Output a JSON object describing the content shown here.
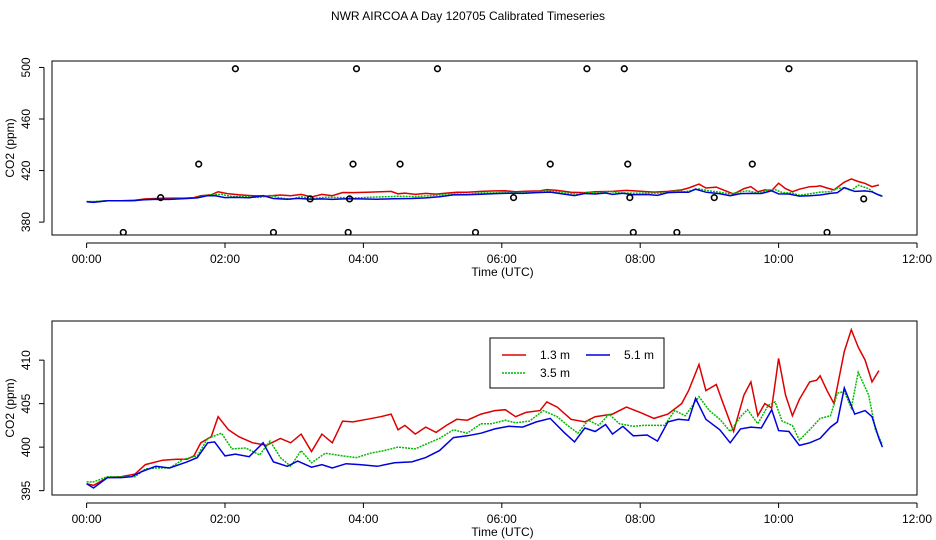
{
  "title": "NWR AIRCOA A  Day 120705  Calibrated Timeseries",
  "colors": {
    "1.3 m": "#dd0000",
    "3.5 m": "#00bb00",
    "5.1 m": "#0000dd",
    "flags": "#000000"
  },
  "chart_data": [
    {
      "type": "line",
      "title": "",
      "xlabel": "Time (UTC)",
      "ylabel": "CO2 (ppm)",
      "xlim": [
        -0.5,
        12.0
      ],
      "ylim": [
        370,
        505
      ],
      "x_ticks": [
        0,
        2,
        4,
        6,
        8,
        10,
        12
      ],
      "x_tick_labels": [
        "00:00",
        "02:00",
        "04:00",
        "06:00",
        "08:00",
        "10:00",
        "12:00"
      ],
      "y_ticks": [
        380,
        420,
        460,
        500
      ],
      "y_tick_labels": [
        "380",
        "420",
        "460",
        "500"
      ],
      "markers": {
        "name": "calibration flags",
        "points": [
          [
            0.53,
            372
          ],
          [
            1.07,
            399
          ],
          [
            1.62,
            425
          ],
          [
            2.15,
            499
          ],
          [
            2.7,
            372
          ],
          [
            3.23,
            398
          ],
          [
            3.78,
            372
          ],
          [
            3.8,
            398
          ],
          [
            3.85,
            425
          ],
          [
            3.9,
            499
          ],
          [
            4.53,
            425
          ],
          [
            5.07,
            499
          ],
          [
            5.62,
            372
          ],
          [
            6.17,
            399
          ],
          [
            6.7,
            425
          ],
          [
            7.23,
            499
          ],
          [
            7.77,
            499
          ],
          [
            7.82,
            425
          ],
          [
            7.85,
            399
          ],
          [
            7.9,
            372
          ],
          [
            8.53,
            372
          ],
          [
            9.07,
            399
          ],
          [
            9.62,
            425
          ],
          [
            10.15,
            499
          ],
          [
            10.7,
            372
          ],
          [
            11.23,
            398
          ]
        ]
      },
      "series_ref": "shared"
    },
    {
      "type": "line",
      "title": "",
      "xlabel": "Time (UTC)",
      "ylabel": "CO2 (ppm)",
      "xlim": [
        -0.5,
        12.0
      ],
      "ylim": [
        394.5,
        414.5
      ],
      "x_ticks": [
        0,
        2,
        4,
        6,
        8,
        10,
        12
      ],
      "x_tick_labels": [
        "00:00",
        "02:00",
        "04:00",
        "06:00",
        "08:00",
        "10:00",
        "12:00"
      ],
      "y_ticks": [
        395,
        400,
        405,
        410
      ],
      "y_tick_labels": [
        "395",
        "400",
        "405",
        "410"
      ],
      "legend": {
        "position": "top-center",
        "entries": [
          "1.3 m",
          "3.5 m",
          "5.1 m"
        ]
      },
      "series_ref": "shared"
    }
  ],
  "series": [
    {
      "name": "1.3 m",
      "points": [
        [
          0.0,
          395.8
        ],
        [
          0.1,
          395.6
        ],
        [
          0.3,
          396.5
        ],
        [
          0.5,
          396.6
        ],
        [
          0.7,
          396.9
        ],
        [
          0.85,
          398.0
        ],
        [
          1.1,
          398.5
        ],
        [
          1.3,
          398.6
        ],
        [
          1.45,
          398.6
        ],
        [
          1.55,
          399.0
        ],
        [
          1.65,
          400.5
        ],
        [
          1.8,
          401.2
        ],
        [
          1.9,
          403.5
        ],
        [
          2.05,
          402.0
        ],
        [
          2.2,
          401.2
        ],
        [
          2.4,
          400.5
        ],
        [
          2.6,
          400.2
        ],
        [
          2.8,
          401.0
        ],
        [
          2.95,
          400.5
        ],
        [
          3.1,
          401.5
        ],
        [
          3.25,
          399.5
        ],
        [
          3.4,
          401.5
        ],
        [
          3.55,
          400.5
        ],
        [
          3.7,
          403.0
        ],
        [
          3.85,
          402.9
        ],
        [
          4.05,
          403.2
        ],
        [
          4.25,
          403.5
        ],
        [
          4.4,
          403.8
        ],
        [
          4.5,
          402.0
        ],
        [
          4.6,
          402.5
        ],
        [
          4.75,
          401.5
        ],
        [
          4.9,
          402.3
        ],
        [
          5.05,
          401.7
        ],
        [
          5.2,
          402.5
        ],
        [
          5.35,
          403.2
        ],
        [
          5.5,
          403.1
        ],
        [
          5.7,
          403.8
        ],
        [
          5.9,
          404.2
        ],
        [
          6.05,
          404.3
        ],
        [
          6.2,
          403.5
        ],
        [
          6.35,
          404.0
        ],
        [
          6.55,
          404.2
        ],
        [
          6.65,
          405.2
        ],
        [
          6.8,
          404.6
        ],
        [
          7.0,
          403.2
        ],
        [
          7.2,
          402.9
        ],
        [
          7.35,
          403.5
        ],
        [
          7.6,
          403.8
        ],
        [
          7.8,
          404.6
        ],
        [
          8.0,
          404.0
        ],
        [
          8.2,
          403.3
        ],
        [
          8.4,
          403.8
        ],
        [
          8.6,
          405.0
        ],
        [
          8.7,
          406.5
        ],
        [
          8.85,
          409.5
        ],
        [
          8.95,
          406.5
        ],
        [
          9.1,
          407.2
        ],
        [
          9.2,
          405.0
        ],
        [
          9.35,
          401.8
        ],
        [
          9.5,
          406.0
        ],
        [
          9.6,
          407.5
        ],
        [
          9.7,
          403.6
        ],
        [
          9.8,
          405.0
        ],
        [
          9.9,
          404.5
        ],
        [
          10.0,
          410.2
        ],
        [
          10.1,
          406.0
        ],
        [
          10.2,
          403.6
        ],
        [
          10.3,
          405.5
        ],
        [
          10.45,
          407.5
        ],
        [
          10.55,
          407.7
        ],
        [
          10.6,
          408.2
        ],
        [
          10.7,
          406.5
        ],
        [
          10.8,
          405.0
        ],
        [
          10.95,
          411.0
        ],
        [
          11.05,
          413.5
        ],
        [
          11.15,
          411.5
        ],
        [
          11.25,
          410.0
        ],
        [
          11.35,
          407.5
        ],
        [
          11.45,
          408.8
        ]
      ]
    },
    {
      "name": "3.5 m",
      "points": [
        [
          0.0,
          396.0
        ],
        [
          0.1,
          396.0
        ],
        [
          0.3,
          396.6
        ],
        [
          0.5,
          396.6
        ],
        [
          0.7,
          396.6
        ],
        [
          0.85,
          397.5
        ],
        [
          1.0,
          397.6
        ],
        [
          1.2,
          397.6
        ],
        [
          1.4,
          398.6
        ],
        [
          1.6,
          399.0
        ],
        [
          1.75,
          401.0
        ],
        [
          1.95,
          401.6
        ],
        [
          2.1,
          399.8
        ],
        [
          2.3,
          399.9
        ],
        [
          2.5,
          399.1
        ],
        [
          2.65,
          400.7
        ],
        [
          2.8,
          398.8
        ],
        [
          2.95,
          397.8
        ],
        [
          3.1,
          399.6
        ],
        [
          3.25,
          398.2
        ],
        [
          3.45,
          399.3
        ],
        [
          3.7,
          399.0
        ],
        [
          3.9,
          398.8
        ],
        [
          4.1,
          399.3
        ],
        [
          4.3,
          399.6
        ],
        [
          4.5,
          400.0
        ],
        [
          4.75,
          399.8
        ],
        [
          4.95,
          400.5
        ],
        [
          5.1,
          401.0
        ],
        [
          5.3,
          402.0
        ],
        [
          5.5,
          401.6
        ],
        [
          5.7,
          402.7
        ],
        [
          5.85,
          402.7
        ],
        [
          6.05,
          403.1
        ],
        [
          6.2,
          402.8
        ],
        [
          6.4,
          403.0
        ],
        [
          6.6,
          404.2
        ],
        [
          6.8,
          403.5
        ],
        [
          6.95,
          402.5
        ],
        [
          7.1,
          401.6
        ],
        [
          7.25,
          403.1
        ],
        [
          7.4,
          402.5
        ],
        [
          7.55,
          403.8
        ],
        [
          7.7,
          402.7
        ],
        [
          7.9,
          402.4
        ],
        [
          8.05,
          402.5
        ],
        [
          8.2,
          402.5
        ],
        [
          8.35,
          402.5
        ],
        [
          8.5,
          404.2
        ],
        [
          8.65,
          403.6
        ],
        [
          8.85,
          405.8
        ],
        [
          9.0,
          404.2
        ],
        [
          9.15,
          403.2
        ],
        [
          9.3,
          401.8
        ],
        [
          9.45,
          403.5
        ],
        [
          9.55,
          404.3
        ],
        [
          9.7,
          402.7
        ],
        [
          9.85,
          404.8
        ],
        [
          9.95,
          405.2
        ],
        [
          10.05,
          403.0
        ],
        [
          10.2,
          402.5
        ],
        [
          10.3,
          400.8
        ],
        [
          10.45,
          402.0
        ],
        [
          10.6,
          403.3
        ],
        [
          10.75,
          403.6
        ],
        [
          10.85,
          406.2
        ],
        [
          10.95,
          406.4
        ],
        [
          11.05,
          404.5
        ],
        [
          11.15,
          408.6
        ],
        [
          11.3,
          406.0
        ],
        [
          11.4,
          402.0
        ],
        [
          11.5,
          400.3
        ]
      ]
    },
    {
      "name": "5.1 m",
      "points": [
        [
          0.0,
          395.8
        ],
        [
          0.1,
          395.3
        ],
        [
          0.3,
          396.5
        ],
        [
          0.5,
          396.5
        ],
        [
          0.65,
          396.6
        ],
        [
          0.8,
          397.2
        ],
        [
          1.0,
          397.8
        ],
        [
          1.2,
          397.6
        ],
        [
          1.45,
          398.3
        ],
        [
          1.6,
          398.8
        ],
        [
          1.75,
          400.5
        ],
        [
          1.85,
          400.6
        ],
        [
          2.0,
          399.0
        ],
        [
          2.15,
          399.2
        ],
        [
          2.35,
          398.9
        ],
        [
          2.55,
          400.5
        ],
        [
          2.7,
          398.3
        ],
        [
          2.9,
          397.8
        ],
        [
          3.05,
          398.4
        ],
        [
          3.25,
          397.7
        ],
        [
          3.4,
          398.0
        ],
        [
          3.55,
          397.6
        ],
        [
          3.75,
          398.1
        ],
        [
          3.95,
          398.0
        ],
        [
          4.2,
          397.8
        ],
        [
          4.45,
          398.2
        ],
        [
          4.7,
          398.3
        ],
        [
          4.9,
          398.8
        ],
        [
          5.1,
          399.6
        ],
        [
          5.3,
          401.1
        ],
        [
          5.5,
          401.3
        ],
        [
          5.7,
          401.6
        ],
        [
          5.9,
          402.1
        ],
        [
          6.1,
          402.4
        ],
        [
          6.3,
          402.3
        ],
        [
          6.5,
          402.9
        ],
        [
          6.7,
          403.3
        ],
        [
          6.9,
          401.7
        ],
        [
          7.05,
          400.6
        ],
        [
          7.2,
          402.2
        ],
        [
          7.35,
          401.8
        ],
        [
          7.5,
          402.6
        ],
        [
          7.6,
          401.5
        ],
        [
          7.75,
          402.4
        ],
        [
          7.9,
          401.3
        ],
        [
          8.1,
          401.4
        ],
        [
          8.25,
          400.7
        ],
        [
          8.4,
          402.9
        ],
        [
          8.55,
          403.2
        ],
        [
          8.7,
          403.1
        ],
        [
          8.8,
          405.6
        ],
        [
          8.95,
          403.2
        ],
        [
          9.15,
          402.0
        ],
        [
          9.3,
          400.5
        ],
        [
          9.45,
          402.1
        ],
        [
          9.6,
          402.3
        ],
        [
          9.75,
          402.2
        ],
        [
          9.9,
          404.3
        ],
        [
          10.0,
          401.9
        ],
        [
          10.15,
          401.8
        ],
        [
          10.3,
          400.2
        ],
        [
          10.45,
          400.5
        ],
        [
          10.6,
          401.0
        ],
        [
          10.75,
          402.3
        ],
        [
          10.85,
          402.9
        ],
        [
          10.95,
          406.8
        ],
        [
          11.1,
          403.8
        ],
        [
          11.25,
          404.2
        ],
        [
          11.35,
          403.5
        ],
        [
          11.45,
          401.0
        ],
        [
          11.5,
          400.0
        ]
      ]
    }
  ]
}
